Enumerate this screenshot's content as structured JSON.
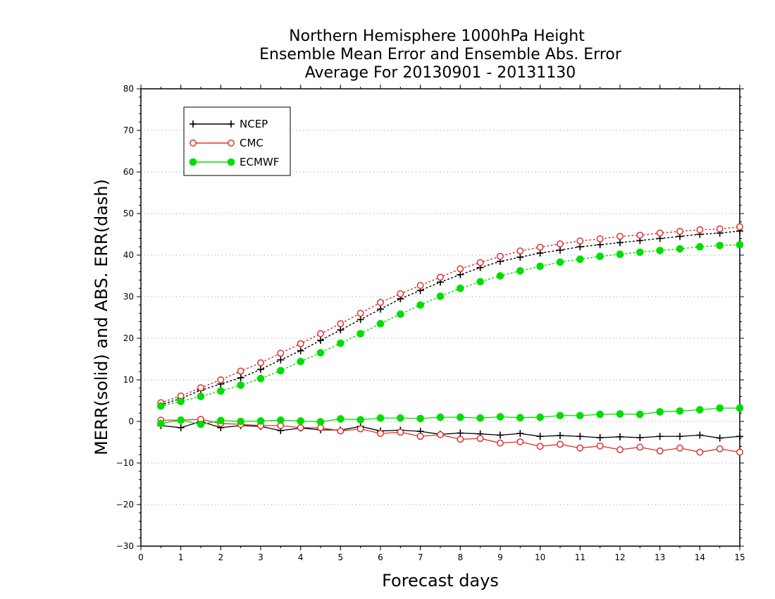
{
  "chart_data": {
    "type": "line",
    "title": [
      "Northern Hemisphere 1000hPa Height",
      "Ensemble Mean Error and Ensemble Abs. Error",
      "Average For 20130901 - 20131130"
    ],
    "xlabel": "Forecast days",
    "ylabel": "MERR(solid) and ABS. ERR(dash)",
    "xlim": [
      0,
      15
    ],
    "ylim": [
      -30,
      80
    ],
    "xticks": [
      "0",
      "1",
      "2",
      "3",
      "4",
      "5",
      "6",
      "7",
      "8",
      "9",
      "10",
      "11",
      "12",
      "13",
      "14",
      "15"
    ],
    "yticks": [
      "80",
      "70",
      "60",
      "50",
      "40",
      "30",
      "20",
      "10",
      "0",
      "−10",
      "−20",
      "−30"
    ],
    "ytick_values": [
      80,
      70,
      60,
      50,
      40,
      30,
      20,
      10,
      0,
      -10,
      -20,
      -30
    ],
    "grid": "horizontal dotted",
    "legend_position": "top-left",
    "x": [
      0.5,
      1,
      1.5,
      2,
      2.5,
      3,
      3.5,
      4,
      4.5,
      5,
      5.5,
      6,
      6.5,
      7,
      7.5,
      8,
      8.5,
      9,
      9.5,
      10,
      10.5,
      11,
      11.5,
      12,
      12.5,
      13,
      13.5,
      14,
      14.5,
      15
    ],
    "series": [
      {
        "name": "NCEP",
        "color": "#000000",
        "marker": "plus",
        "merr": [
          -1.0,
          -1.5,
          0.0,
          -1.5,
          -1.0,
          -1.2,
          -2.2,
          -1.6,
          -2.0,
          -2.1,
          -1.2,
          -2.3,
          -2.1,
          -2.4,
          -3.1,
          -2.8,
          -3.0,
          -3.3,
          -2.9,
          -3.6,
          -3.4,
          -3.6,
          -3.9,
          -3.7,
          -3.9,
          -3.6,
          -3.6,
          -3.3,
          -4.0,
          -3.6
        ],
        "abs_err": [
          4.0,
          5.5,
          7.5,
          9.0,
          10.5,
          12.5,
          14.8,
          17.0,
          19.5,
          22.0,
          24.5,
          27.0,
          29.5,
          31.5,
          33.5,
          35.3,
          37.0,
          38.5,
          39.5,
          40.5,
          41.2,
          42.0,
          42.5,
          43.0,
          43.5,
          44.0,
          44.5,
          45.0,
          45.3,
          45.8
        ]
      },
      {
        "name": "CMC",
        "color": "#e03030",
        "marker": "open-circle",
        "merr": [
          0.3,
          0.3,
          0.5,
          -0.5,
          -0.7,
          -1.0,
          -1.0,
          -1.5,
          -1.5,
          -2.3,
          -1.8,
          -2.9,
          -2.6,
          -3.6,
          -3.2,
          -4.3,
          -4.1,
          -5.2,
          -4.9,
          -6.0,
          -5.5,
          -6.4,
          -5.9,
          -6.8,
          -6.2,
          -7.1,
          -6.4,
          -7.4,
          -6.6,
          -7.4
        ],
        "abs_err": [
          4.5,
          6.1,
          8.1,
          10.0,
          12.1,
          14.1,
          16.4,
          18.7,
          21.1,
          23.5,
          26.0,
          28.6,
          30.7,
          32.7,
          34.7,
          36.7,
          38.2,
          39.7,
          41.0,
          41.9,
          42.7,
          43.4,
          43.9,
          44.5,
          44.8,
          45.3,
          45.7,
          46.1,
          46.3,
          46.8
        ]
      },
      {
        "name": "ECMWF",
        "color": "#00dd00",
        "marker": "filled-circle",
        "merr": [
          -0.5,
          0.3,
          -0.7,
          0.2,
          0.0,
          0.1,
          0.3,
          0.1,
          -0.1,
          0.6,
          0.4,
          0.8,
          0.8,
          0.7,
          1.0,
          1.0,
          0.8,
          1.1,
          0.9,
          1.0,
          1.4,
          1.4,
          1.7,
          1.8,
          1.7,
          2.3,
          2.5,
          2.8,
          3.2,
          3.2
        ],
        "abs_err": [
          3.7,
          4.8,
          6.0,
          7.3,
          8.7,
          10.3,
          12.2,
          14.4,
          16.5,
          18.8,
          21.1,
          23.5,
          25.8,
          28.0,
          30.1,
          32.0,
          33.6,
          35.0,
          36.2,
          37.3,
          38.3,
          39.0,
          39.7,
          40.2,
          40.7,
          41.1,
          41.5,
          42.0,
          42.3,
          42.5
        ]
      }
    ]
  }
}
